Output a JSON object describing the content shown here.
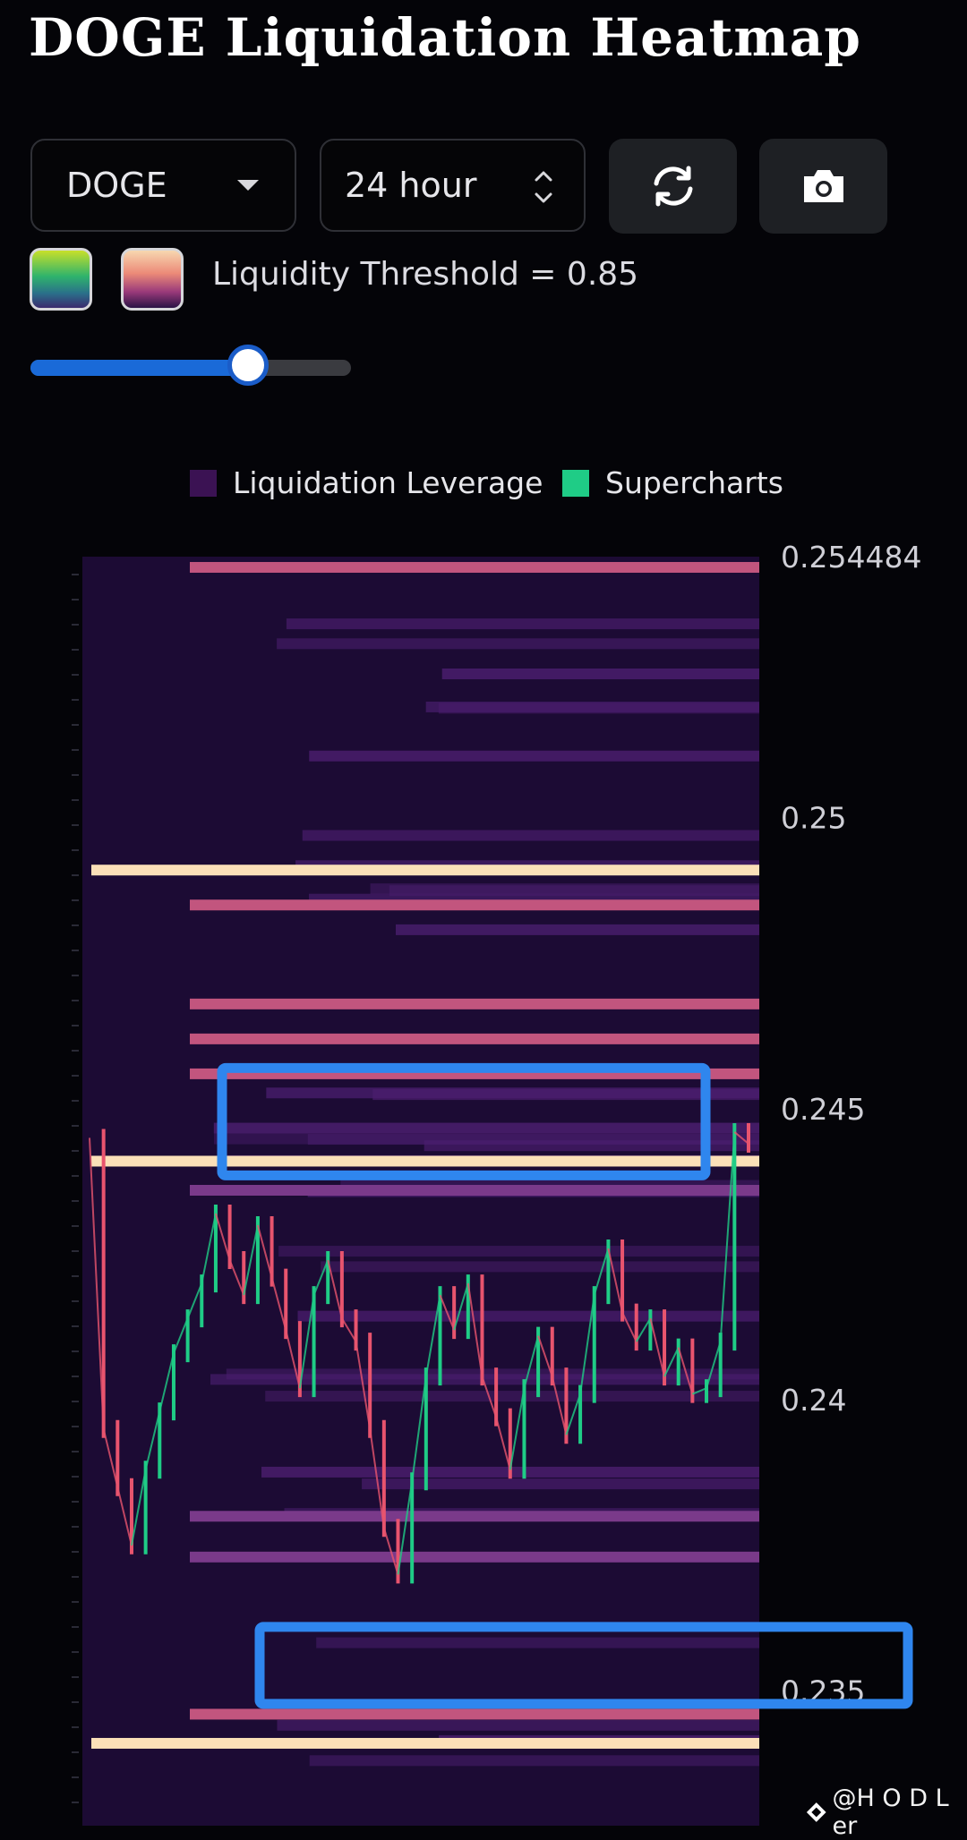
{
  "header": {
    "title": "DOGE Liquidation Heatmap"
  },
  "controls": {
    "coin_select": {
      "value": "DOGE"
    },
    "timeframe_select": {
      "value": "24 hour"
    },
    "refresh_icon": "refresh-icon",
    "camera_icon": "camera-icon"
  },
  "palette": {
    "option_1": "#2fb36c",
    "option_2": "#ec8a78"
  },
  "threshold": {
    "label": "Liquidity Threshold = 0.85",
    "value": 0.85
  },
  "legend": {
    "items": [
      {
        "label": "Liquidation Leverage",
        "color": "#3b1253"
      },
      {
        "label": "Supercharts",
        "color": "#1fcc86"
      }
    ]
  },
  "chart_data": {
    "type": "heatmap",
    "y_axis": {
      "ticks": [
        "0.254484",
        "0.25",
        "0.245",
        "0.24",
        "0.235"
      ],
      "range": [
        0.2333,
        0.254484
      ]
    },
    "liquidation_levels": [
      {
        "price": 0.2543,
        "intensity": 0.55
      },
      {
        "price": 0.2491,
        "intensity": 1.0
      },
      {
        "price": 0.2485,
        "intensity": 0.6
      },
      {
        "price": 0.2468,
        "intensity": 0.5
      },
      {
        "price": 0.2462,
        "intensity": 0.55
      },
      {
        "price": 0.2456,
        "intensity": 0.5
      },
      {
        "price": 0.2441,
        "intensity": 1.0
      },
      {
        "price": 0.2436,
        "intensity": 0.45
      },
      {
        "price": 0.238,
        "intensity": 0.4
      },
      {
        "price": 0.2373,
        "intensity": 0.45
      },
      {
        "price": 0.2346,
        "intensity": 0.55
      },
      {
        "price": 0.2341,
        "intensity": 1.0
      }
    ],
    "price_series": {
      "name": "Supercharts",
      "closes": [
        0.2445,
        0.2395,
        0.2385,
        0.2375,
        0.2388,
        0.2398,
        0.2408,
        0.2414,
        0.242,
        0.2432,
        0.2424,
        0.2418,
        0.243,
        0.2421,
        0.2412,
        0.2402,
        0.2418,
        0.2424,
        0.2414,
        0.241,
        0.2395,
        0.2378,
        0.237,
        0.2386,
        0.2404,
        0.2418,
        0.2412,
        0.242,
        0.2404,
        0.2397,
        0.2388,
        0.2402,
        0.2411,
        0.2404,
        0.2394,
        0.2401,
        0.2418,
        0.2426,
        0.2415,
        0.241,
        0.2414,
        0.2404,
        0.2409,
        0.2401,
        0.2402,
        0.241,
        0.2446,
        0.2444
      ]
    }
  },
  "highlights": [
    {
      "label": "box-upper"
    },
    {
      "label": "box-lower"
    }
  ],
  "watermark": {
    "text": "@H O D L er"
  }
}
